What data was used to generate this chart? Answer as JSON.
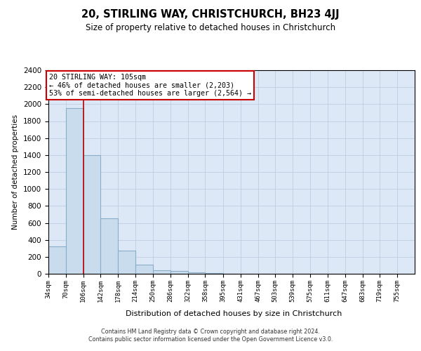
{
  "title": "20, STIRLING WAY, CHRISTCHURCH, BH23 4JJ",
  "subtitle": "Size of property relative to detached houses in Christchurch",
  "xlabel": "Distribution of detached houses by size in Christchurch",
  "ylabel": "Number of detached properties",
  "bar_color": "#c8dced",
  "bar_edge_color": "#8aaec8",
  "grid_color": "#c0cce0",
  "background_color": "#dce8f6",
  "bins": [
    34,
    70,
    106,
    142,
    178,
    214,
    250,
    286,
    322,
    358,
    395,
    431,
    467,
    503,
    539,
    575,
    611,
    647,
    683,
    719,
    755
  ],
  "bin_labels": [
    "34sqm",
    "70sqm",
    "106sqm",
    "142sqm",
    "178sqm",
    "214sqm",
    "250sqm",
    "286sqm",
    "322sqm",
    "358sqm",
    "395sqm",
    "431sqm",
    "467sqm",
    "503sqm",
    "539sqm",
    "575sqm",
    "611sqm",
    "647sqm",
    "683sqm",
    "719sqm",
    "755sqm"
  ],
  "values": [
    320,
    1950,
    1400,
    650,
    270,
    105,
    40,
    30,
    20,
    10,
    0,
    0,
    0,
    0,
    0,
    0,
    0,
    0,
    0,
    0
  ],
  "vline_x": 106,
  "annotation_line1": "20 STIRLING WAY: 105sqm",
  "annotation_line2": "← 46% of detached houses are smaller (2,203)",
  "annotation_line3": "53% of semi-detached houses are larger (2,564) →",
  "vline_color": "#bb0000",
  "annotation_box_edge": "#cc0000",
  "footer_line1": "Contains HM Land Registry data © Crown copyright and database right 2024.",
  "footer_line2": "Contains public sector information licensed under the Open Government Licence v3.0.",
  "ylim": [
    0,
    2400
  ],
  "yticks": [
    0,
    200,
    400,
    600,
    800,
    1000,
    1200,
    1400,
    1600,
    1800,
    2000,
    2200,
    2400
  ]
}
